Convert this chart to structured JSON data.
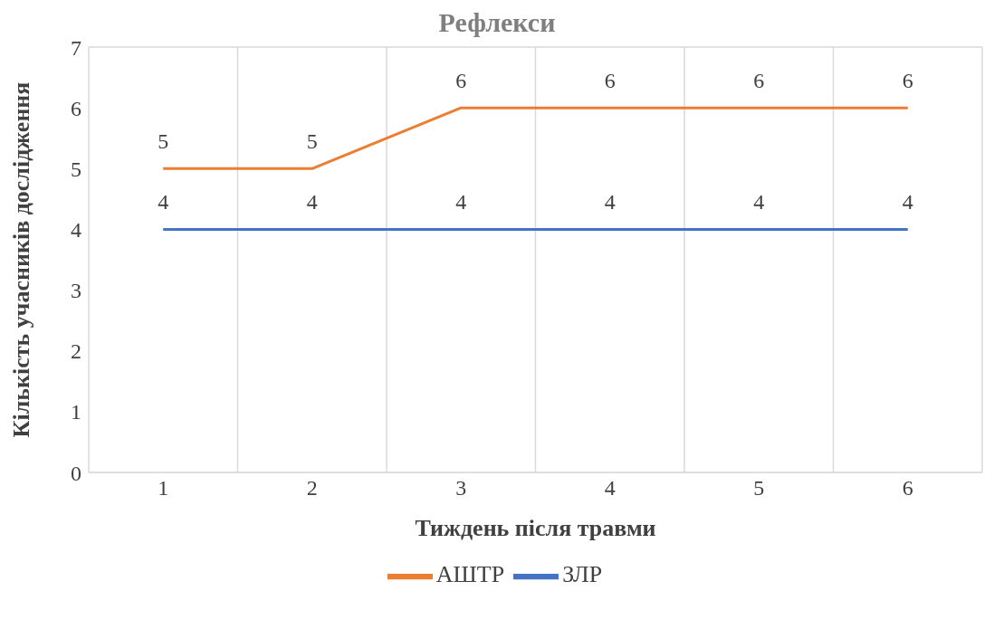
{
  "chart_data": {
    "type": "line",
    "title": "Рефлекси",
    "xlabel": "Тиждень після травми",
    "ylabel": "Кількість учасників дослідження",
    "categories": [
      "1",
      "2",
      "3",
      "4",
      "5",
      "6"
    ],
    "series": [
      {
        "name": "ЗЛР",
        "color": "#4472c4",
        "values": [
          4,
          4,
          4,
          4,
          4,
          4
        ]
      },
      {
        "name": "АШТР",
        "color": "#ed7d31",
        "values": [
          5,
          5,
          6,
          6,
          6,
          6
        ]
      }
    ],
    "ylim": [
      0,
      7
    ],
    "yticks": [
      0,
      1,
      2,
      3,
      4,
      5,
      6,
      7
    ],
    "grid": true,
    "legend": "bottom",
    "data_labels": true,
    "marker": "none",
    "line_style": "solid"
  }
}
